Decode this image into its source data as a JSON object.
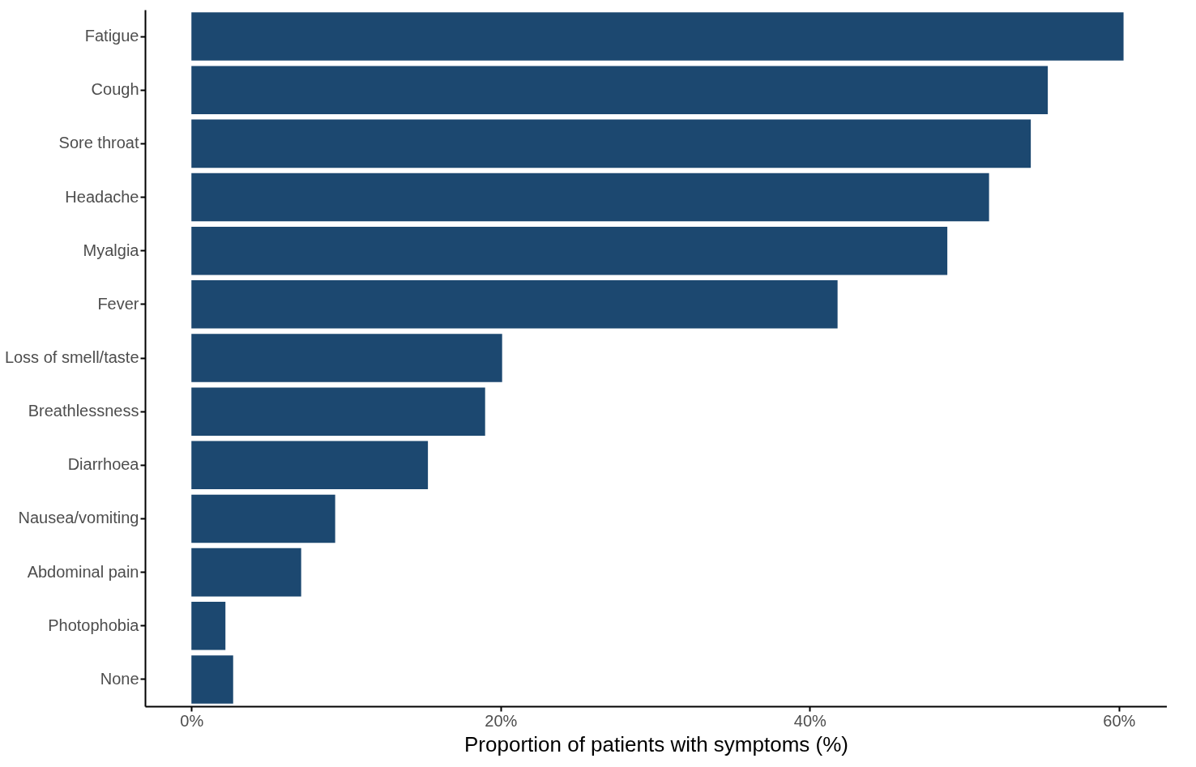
{
  "chart_data": {
    "type": "bar",
    "orientation": "horizontal",
    "xlabel": "Proportion of patients with symptoms (%)",
    "categories": [
      "Fatigue",
      "Cough",
      "Sore throat",
      "Headache",
      "Myalgia",
      "Fever",
      "Loss of smell/taste",
      "Breathlessness",
      "Diarrhoea",
      "Nausea/vomiting",
      "Abdominal pain",
      "Photophobia",
      "None"
    ],
    "values": [
      60.3,
      55.4,
      54.3,
      51.6,
      48.9,
      41.8,
      20.1,
      19.0,
      15.3,
      9.3,
      7.1,
      2.2,
      2.7
    ],
    "color": "#1c4870",
    "xlim": [
      -3,
      63.1
    ],
    "xticks": [
      {
        "value": 0,
        "label": "0%"
      },
      {
        "value": 20,
        "label": "20%"
      },
      {
        "value": 40,
        "label": "40%"
      },
      {
        "value": 60,
        "label": "60%"
      }
    ],
    "grid": false
  }
}
